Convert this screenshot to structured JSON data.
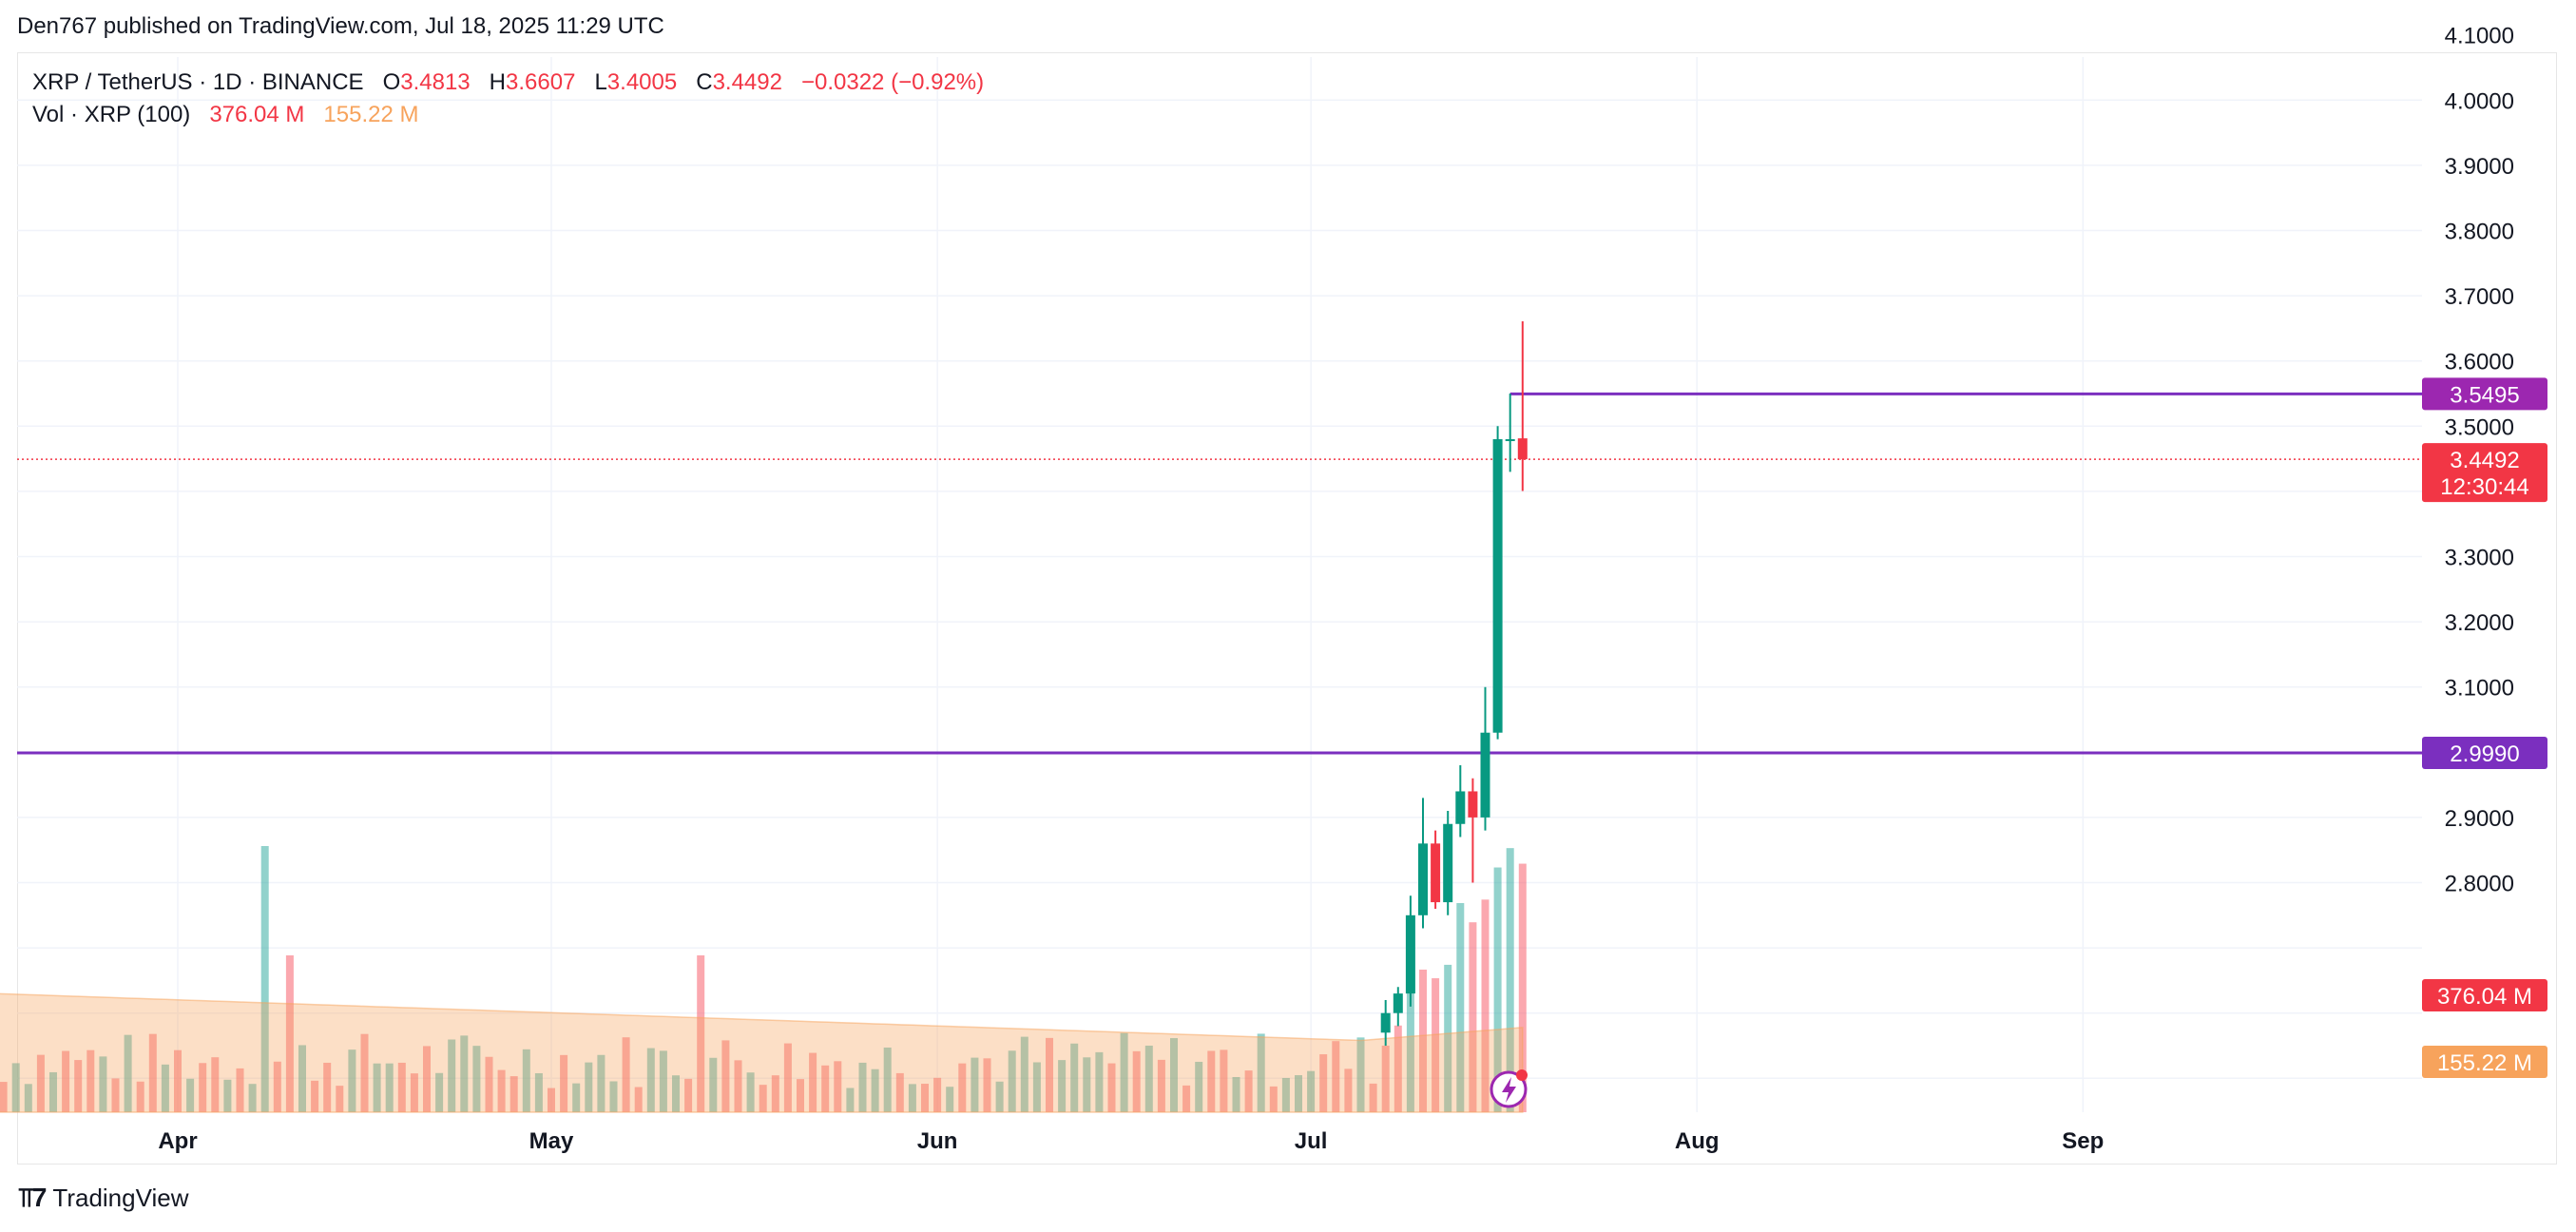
{
  "header": {
    "published": "Den767 published on TradingView.com, Jul 18, 2025 11:29 UTC"
  },
  "legend": {
    "symbol": "XRP / TetherUS · 1D · BINANCE",
    "o_label": "O",
    "o_value": "3.4813",
    "h_label": "H",
    "h_value": "3.6607",
    "l_label": "L",
    "l_value": "3.4005",
    "c_label": "C",
    "c_value": "3.4492",
    "change": "−0.0322 (−0.92%)",
    "vol_label": "Vol · XRP (100)",
    "vol_value": "376.04 M",
    "vol_ma_value": "155.22 M"
  },
  "footer": {
    "brand": "TradingView"
  },
  "colors": {
    "up": "#089981",
    "down": "#f23645",
    "level": "#7b2fbf",
    "vol_ma": "#f7a35c"
  },
  "chart_data": {
    "type": "candlestick",
    "price_axis": {
      "ticks": [
        "4.1000",
        "4.0000",
        "3.9000",
        "3.8000",
        "3.7000",
        "3.6000",
        "3.5000",
        "3.3000",
        "3.2000",
        "3.1000",
        "2.9000",
        "2.8000"
      ],
      "ylim": [
        2.5,
        4.15
      ]
    },
    "time_axis": {
      "labels": [
        "Apr",
        "May",
        "Jun",
        "Jul",
        "Aug",
        "Sep"
      ]
    },
    "levels": [
      {
        "value": 3.5495,
        "label": "3.5495"
      },
      {
        "value": 2.999,
        "label": "2.9990"
      }
    ],
    "last_price": {
      "value": 3.4492,
      "label": "3.4492",
      "countdown": "12:30:44"
    },
    "volume_labels": {
      "volume": "376.04 M",
      "ma": "155.22 M"
    },
    "candles": [
      {
        "date": "2025-07-07",
        "o": 2.57,
        "h": 2.62,
        "l": 2.55,
        "c": 2.6
      },
      {
        "date": "2025-07-08",
        "o": 2.6,
        "h": 2.64,
        "l": 2.58,
        "c": 2.63
      },
      {
        "date": "2025-07-09",
        "o": 2.63,
        "h": 2.78,
        "l": 2.61,
        "c": 2.75
      },
      {
        "date": "2025-07-10",
        "o": 2.75,
        "h": 2.93,
        "l": 2.73,
        "c": 2.86
      },
      {
        "date": "2025-07-11",
        "o": 2.86,
        "h": 2.88,
        "l": 2.76,
        "c": 2.77
      },
      {
        "date": "2025-07-12",
        "o": 2.77,
        "h": 2.91,
        "l": 2.75,
        "c": 2.89
      },
      {
        "date": "2025-07-13",
        "o": 2.89,
        "h": 2.98,
        "l": 2.87,
        "c": 2.94
      },
      {
        "date": "2025-07-14",
        "o": 2.94,
        "h": 2.96,
        "l": 2.8,
        "c": 2.9
      },
      {
        "date": "2025-07-15",
        "o": 2.9,
        "h": 3.1,
        "l": 2.88,
        "c": 3.03
      },
      {
        "date": "2025-07-16",
        "o": 3.03,
        "h": 3.5,
        "l": 3.02,
        "c": 3.48
      },
      {
        "date": "2025-07-17",
        "o": 3.48,
        "h": 3.55,
        "l": 3.43,
        "c": 3.48
      },
      {
        "date": "2025-07-18",
        "o": 3.4813,
        "h": 3.6607,
        "l": 3.4005,
        "c": 3.4492
      }
    ]
  }
}
